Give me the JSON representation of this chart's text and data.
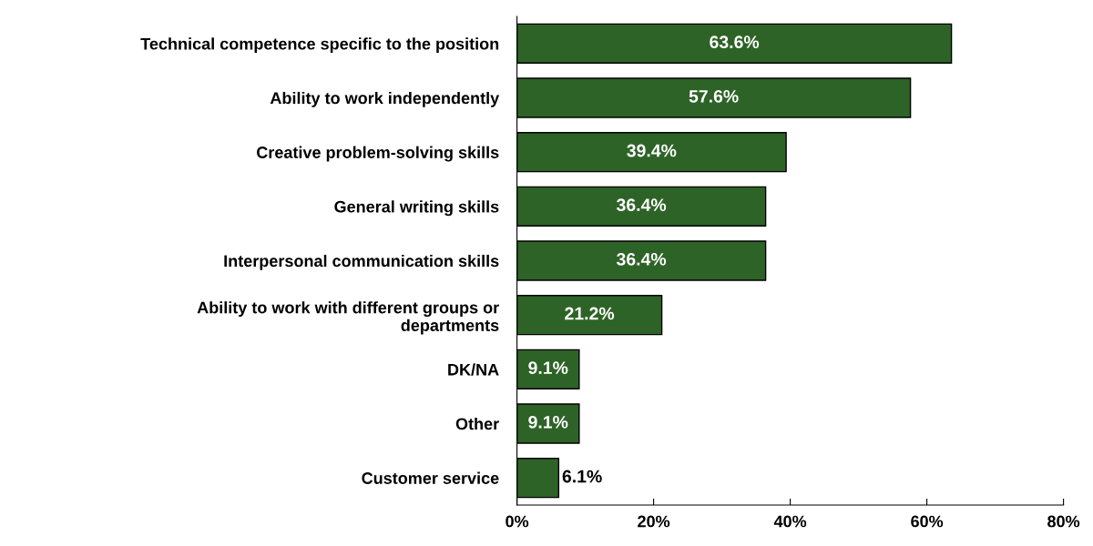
{
  "chart_data": {
    "type": "bar",
    "orientation": "horizontal",
    "categories": [
      "Technical competence specific to the position",
      "Ability to work independently",
      "Creative problem-solving skills",
      "General writing skills",
      "Interpersonal communication skills",
      "Ability to work with different groups or\ndepartments",
      "DK/NA",
      "Other",
      "Customer service"
    ],
    "values": [
      63.6,
      57.6,
      39.4,
      36.4,
      36.4,
      21.2,
      9.1,
      9.1,
      6.1
    ],
    "value_labels": [
      "63.6%",
      "57.6%",
      "39.4%",
      "36.4%",
      "36.4%",
      "21.2%",
      "9.1%",
      "9.1%",
      "6.1%"
    ],
    "color": "#2e6327",
    "xlim": [
      0,
      80
    ],
    "xticks": [
      {
        "value": 0,
        "label": "0%"
      },
      {
        "value": 20,
        "label": "20%"
      },
      {
        "value": 40,
        "label": "40%"
      },
      {
        "value": 60,
        "label": "60%"
      },
      {
        "value": 80,
        "label": "80%"
      }
    ],
    "grid": false,
    "legend": false
  }
}
